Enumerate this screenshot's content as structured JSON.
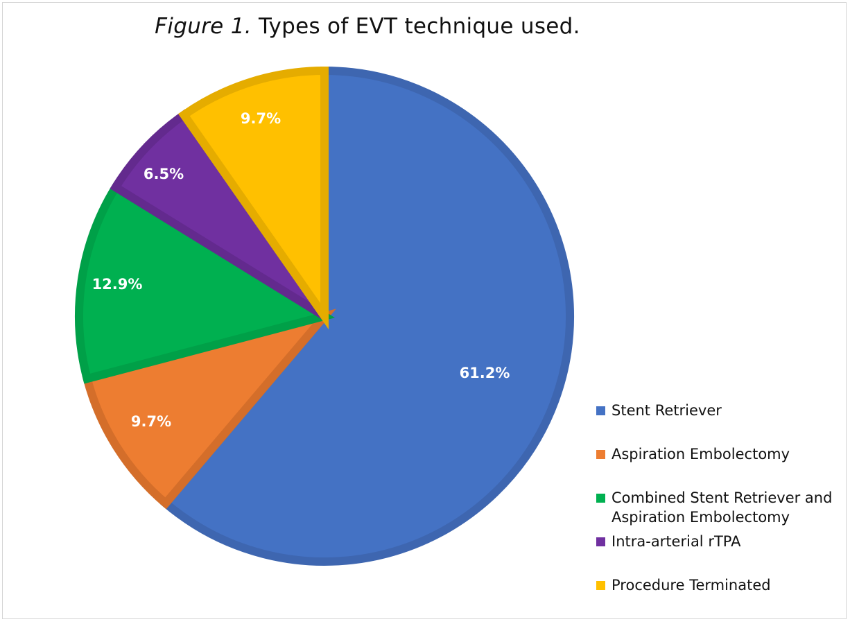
{
  "chart_data": {
    "type": "pie",
    "title_italic": "Figure 1.",
    "title_rest": " Types of EVT technique used.",
    "categories": [
      "Stent Retriever",
      "Aspiration Embolectomy",
      "Combined Stent Retriever and Aspiration Embolectomy",
      "Intra-arterial rTPA",
      "Procedure Terminated"
    ],
    "values": [
      61.2,
      9.7,
      12.9,
      6.5,
      9.7
    ],
    "labels": [
      "61.2%",
      "9.7%",
      "12.9%",
      "6.5%",
      "9.7%"
    ],
    "colors": [
      "#4472C4",
      "#ED7D31",
      "#00B050",
      "#7030A0",
      "#FFC000"
    ],
    "border_colors": [
      "#3E66B0",
      "#D46E2A",
      "#00A048",
      "#632A8E",
      "#E5AC00"
    ],
    "legend": {
      "position": "right",
      "items": [
        {
          "label_lines": [
            "Stent Retriever"
          ]
        },
        {
          "label_lines": [
            "Aspiration Embolectomy"
          ]
        },
        {
          "label_lines": [
            "Combined Stent Retriever and",
            "Aspiration Embolectomy"
          ]
        },
        {
          "label_lines": [
            "Intra-arterial rTPA"
          ]
        },
        {
          "label_lines": [
            "Procedure Terminated"
          ]
        }
      ]
    }
  }
}
